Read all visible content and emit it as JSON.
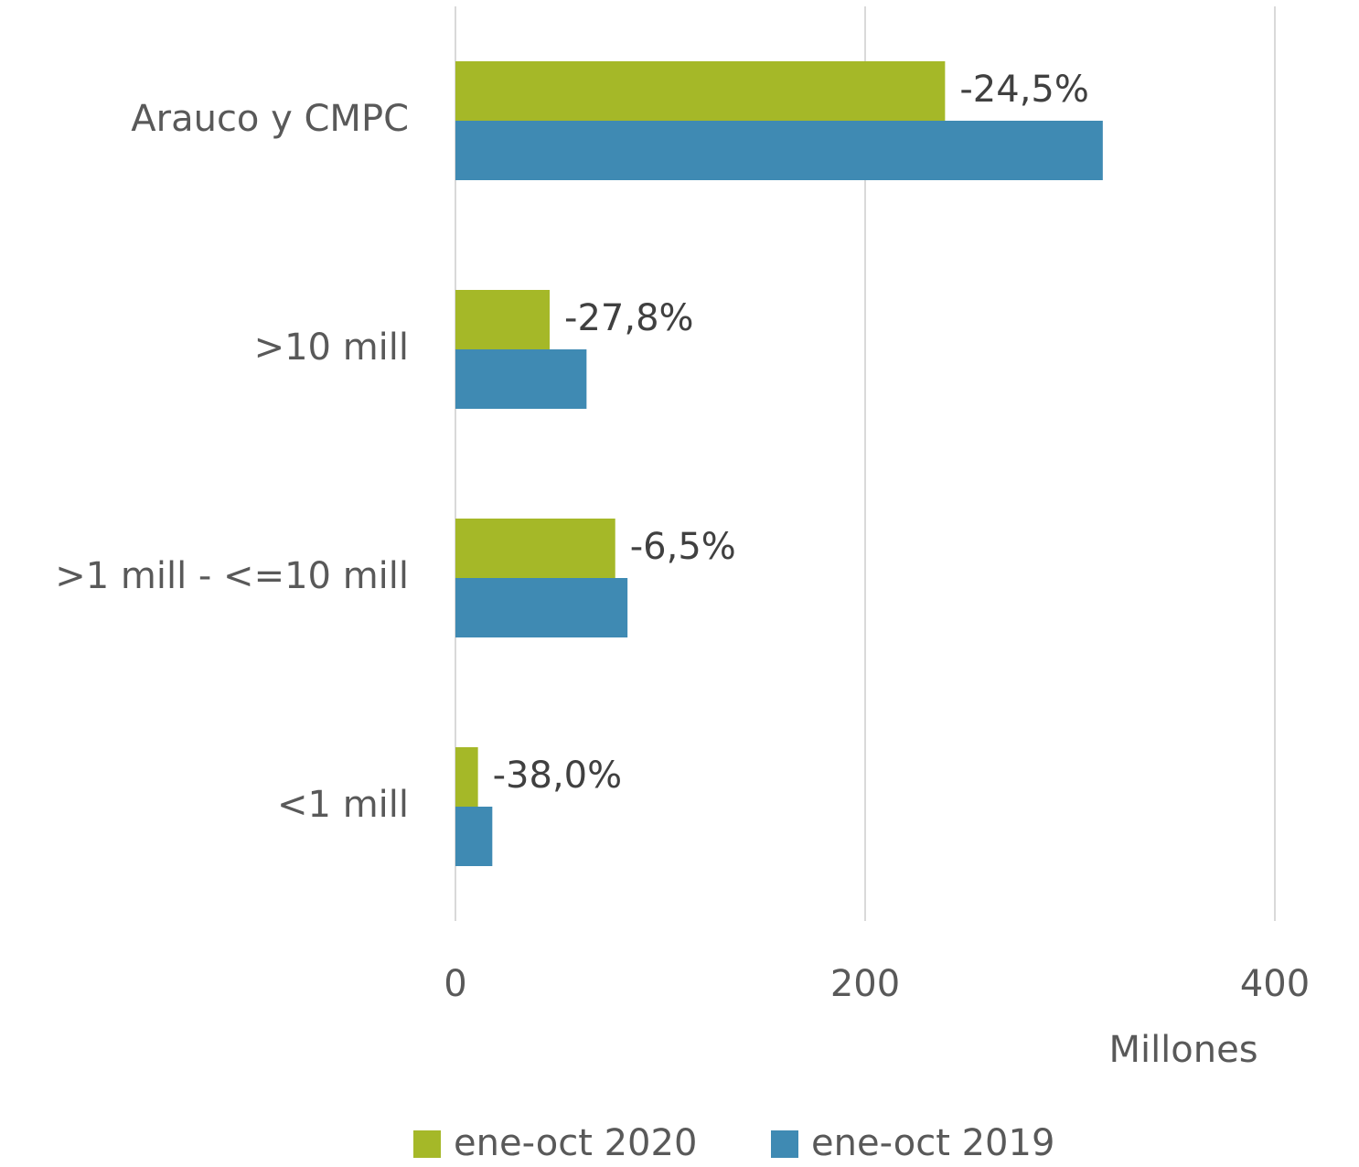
{
  "chart_data": {
    "type": "bar",
    "orientation": "horizontal",
    "categories": [
      "Arauco y CMPC",
      ">10 mill",
      ">1 mill - <=10 mill",
      "<1 mill"
    ],
    "series": [
      {
        "name": "ene-oct 2020",
        "color": "#a5b828",
        "values": [
          239,
          46,
          78,
          11
        ]
      },
      {
        "name": "ene-oct 2019",
        "color": "#3f8ab3",
        "values": [
          316,
          64,
          84,
          18
        ]
      }
    ],
    "annotations": [
      "-24,5%",
      "-27,8%",
      "-6,5%",
      "-38,0%"
    ],
    "xlim": [
      0,
      400
    ],
    "xticks": [
      0,
      200,
      400
    ],
    "xlabel": "Millones",
    "grid": true,
    "legend": "bottom"
  }
}
